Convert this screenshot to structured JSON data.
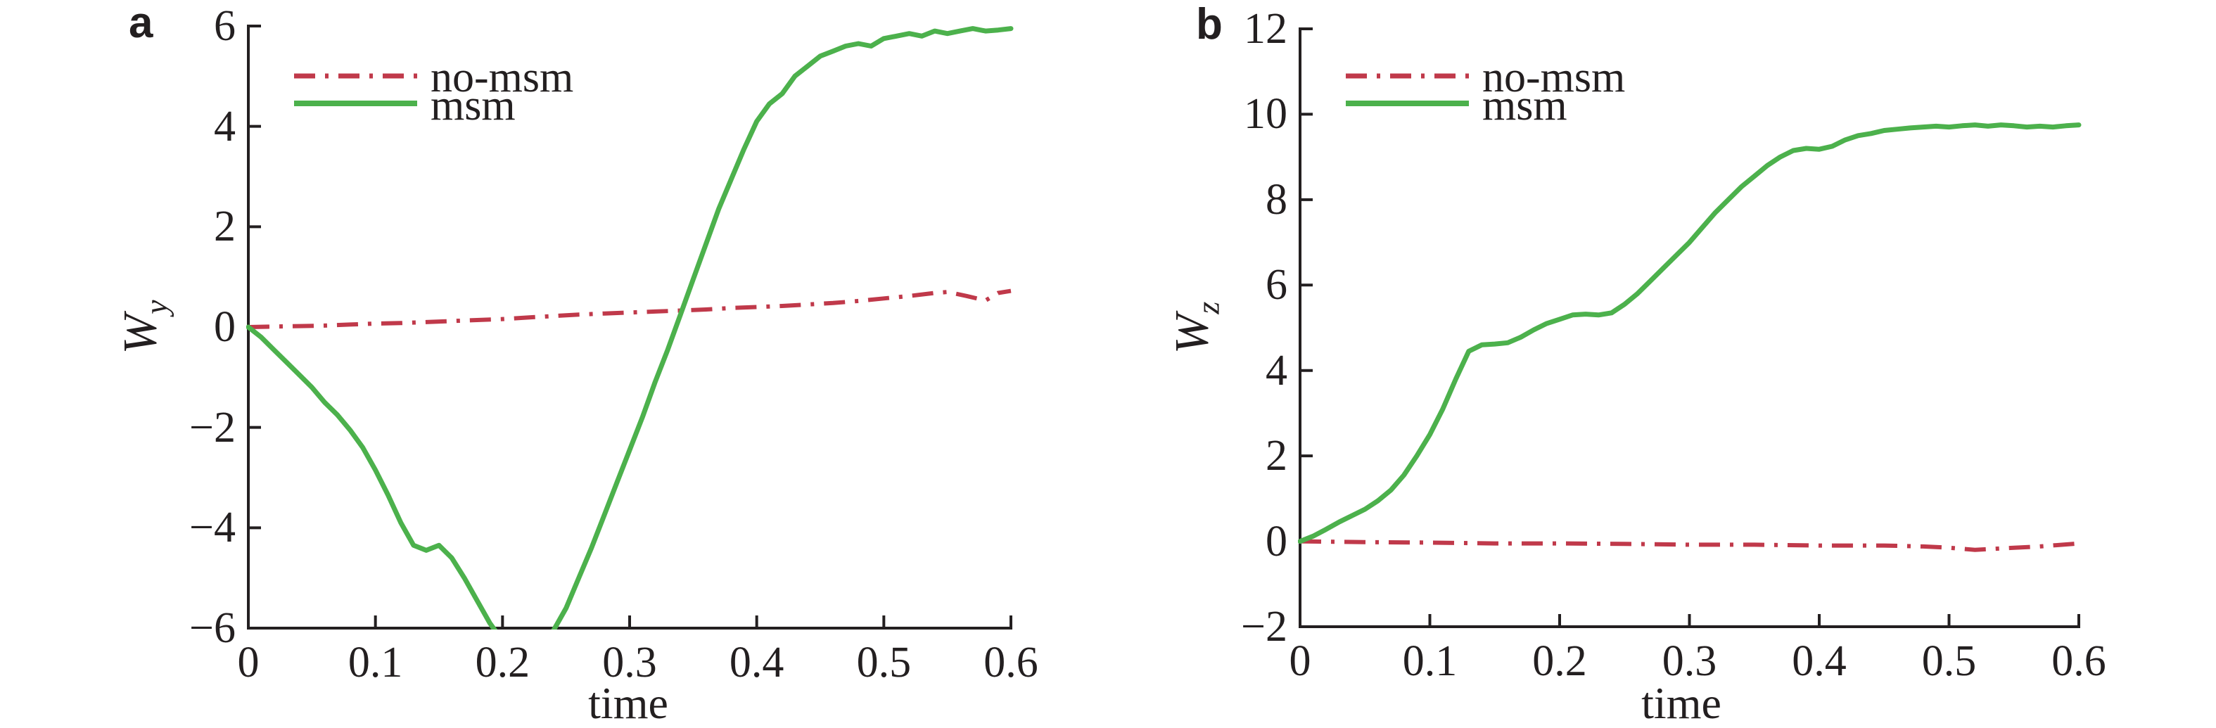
{
  "figure": {
    "background": "#ffffff",
    "text_color": "#231f20",
    "axis_color": "#231f20"
  },
  "chart_data": [
    {
      "id": "panel-a",
      "panel_label": "a",
      "type": "line",
      "xlabel": "time",
      "ylabel": "Wy",
      "ylabel_base": "W",
      "ylabel_sub": "y",
      "xlim": [
        0,
        0.6
      ],
      "ylim": [
        -6,
        6
      ],
      "xticks": [
        0,
        0.1,
        0.2,
        0.3,
        0.4,
        0.5,
        0.6
      ],
      "xtick_labels": [
        "0",
        "0.1",
        "0.2",
        "0.3",
        "0.4",
        "0.5",
        "0.6"
      ],
      "yticks": [
        -6,
        -4,
        -2,
        0,
        2,
        4,
        6
      ],
      "ytick_labels": [
        "−6",
        "−4",
        "−2",
        "0",
        "2",
        "4",
        "6"
      ],
      "grid": false,
      "legend_position": "top-left",
      "series": [
        {
          "name": "no-msm",
          "color": "#c0394a",
          "line_style": "dash-dot",
          "x": [
            0,
            0.02,
            0.04,
            0.06,
            0.08,
            0.1,
            0.12,
            0.14,
            0.16,
            0.18,
            0.2,
            0.22,
            0.24,
            0.26,
            0.28,
            0.3,
            0.32,
            0.34,
            0.36,
            0.38,
            0.4,
            0.42,
            0.44,
            0.46,
            0.48,
            0.5,
            0.52,
            0.54,
            0.55,
            0.565,
            0.58,
            0.59,
            0.6
          ],
          "y": [
            0.0,
            0.01,
            0.02,
            0.03,
            0.05,
            0.07,
            0.08,
            0.1,
            0.12,
            0.14,
            0.16,
            0.19,
            0.22,
            0.25,
            0.27,
            0.29,
            0.31,
            0.33,
            0.35,
            0.38,
            0.4,
            0.42,
            0.45,
            0.48,
            0.52,
            0.57,
            0.62,
            0.68,
            0.7,
            0.62,
            0.53,
            0.68,
            0.72
          ]
        },
        {
          "name": "msm",
          "color": "#4cb14c",
          "line_style": "solid",
          "x": [
            0,
            0.01,
            0.02,
            0.03,
            0.04,
            0.05,
            0.06,
            0.07,
            0.08,
            0.09,
            0.1,
            0.11,
            0.12,
            0.13,
            0.14,
            0.15,
            0.16,
            0.17,
            0.18,
            0.19,
            0.2,
            0.21,
            0.22,
            0.23,
            0.24,
            0.25,
            0.26,
            0.27,
            0.28,
            0.29,
            0.3,
            0.31,
            0.32,
            0.33,
            0.34,
            0.35,
            0.36,
            0.37,
            0.38,
            0.39,
            0.4,
            0.41,
            0.42,
            0.43,
            0.44,
            0.45,
            0.46,
            0.47,
            0.48,
            0.49,
            0.5,
            0.51,
            0.52,
            0.53,
            0.54,
            0.55,
            0.56,
            0.57,
            0.58,
            0.59,
            0.6
          ],
          "y": [
            0.0,
            -0.2,
            -0.45,
            -0.7,
            -0.95,
            -1.2,
            -1.5,
            -1.75,
            -2.05,
            -2.4,
            -2.85,
            -3.35,
            -3.9,
            -4.35,
            -4.45,
            -4.35,
            -4.6,
            -5.0,
            -5.45,
            -5.9,
            -6.25,
            -6.45,
            -6.5,
            -6.35,
            -6.05,
            -5.6,
            -5.0,
            -4.4,
            -3.75,
            -3.1,
            -2.45,
            -1.8,
            -1.1,
            -0.45,
            0.25,
            0.95,
            1.65,
            2.35,
            2.95,
            3.55,
            4.1,
            4.45,
            4.65,
            5.0,
            5.2,
            5.4,
            5.5,
            5.6,
            5.65,
            5.6,
            5.75,
            5.8,
            5.85,
            5.8,
            5.9,
            5.85,
            5.9,
            5.95,
            5.9,
            5.92,
            5.95
          ]
        }
      ]
    },
    {
      "id": "panel-b",
      "panel_label": "b",
      "type": "line",
      "xlabel": "time",
      "ylabel": "Wz",
      "ylabel_base": "W",
      "ylabel_sub": "z",
      "xlim": [
        0,
        0.6
      ],
      "ylim": [
        -2,
        12
      ],
      "xticks": [
        0,
        0.1,
        0.2,
        0.3,
        0.4,
        0.5,
        0.6
      ],
      "xtick_labels": [
        "0",
        "0.1",
        "0.2",
        "0.3",
        "0.4",
        "0.5",
        "0.6"
      ],
      "yticks": [
        -2,
        0,
        2,
        4,
        6,
        8,
        10,
        12
      ],
      "ytick_labels": [
        "−2",
        "0",
        "2",
        "4",
        "6",
        "8",
        "10",
        "12"
      ],
      "grid": false,
      "legend_position": "top-left",
      "series": [
        {
          "name": "no-msm",
          "color": "#c0394a",
          "line_style": "dash-dot",
          "x": [
            0,
            0.05,
            0.1,
            0.15,
            0.2,
            0.25,
            0.3,
            0.35,
            0.4,
            0.45,
            0.48,
            0.5,
            0.52,
            0.55,
            0.57,
            0.6
          ],
          "y": [
            0.0,
            -0.02,
            -0.03,
            -0.05,
            -0.05,
            -0.06,
            -0.08,
            -0.08,
            -0.1,
            -0.1,
            -0.12,
            -0.15,
            -0.2,
            -0.15,
            -0.12,
            -0.05
          ]
        },
        {
          "name": "msm",
          "color": "#4cb14c",
          "line_style": "solid",
          "x": [
            0,
            0.01,
            0.02,
            0.03,
            0.04,
            0.05,
            0.06,
            0.07,
            0.08,
            0.09,
            0.1,
            0.11,
            0.12,
            0.13,
            0.14,
            0.15,
            0.16,
            0.17,
            0.18,
            0.19,
            0.2,
            0.21,
            0.22,
            0.23,
            0.24,
            0.25,
            0.26,
            0.27,
            0.28,
            0.29,
            0.3,
            0.31,
            0.32,
            0.33,
            0.34,
            0.35,
            0.36,
            0.37,
            0.38,
            0.39,
            0.4,
            0.41,
            0.42,
            0.43,
            0.44,
            0.45,
            0.46,
            0.47,
            0.48,
            0.49,
            0.5,
            0.51,
            0.52,
            0.53,
            0.54,
            0.55,
            0.56,
            0.57,
            0.58,
            0.59,
            0.6
          ],
          "y": [
            0.0,
            0.12,
            0.28,
            0.45,
            0.6,
            0.75,
            0.95,
            1.2,
            1.55,
            2.0,
            2.5,
            3.1,
            3.8,
            4.45,
            4.6,
            4.62,
            4.65,
            4.78,
            4.95,
            5.1,
            5.2,
            5.3,
            5.32,
            5.3,
            5.35,
            5.55,
            5.8,
            6.1,
            6.4,
            6.7,
            7.0,
            7.35,
            7.7,
            8.0,
            8.3,
            8.55,
            8.8,
            9.0,
            9.15,
            9.2,
            9.18,
            9.25,
            9.4,
            9.5,
            9.55,
            9.62,
            9.65,
            9.68,
            9.7,
            9.72,
            9.7,
            9.73,
            9.75,
            9.72,
            9.75,
            9.73,
            9.7,
            9.72,
            9.7,
            9.73,
            9.75
          ]
        }
      ]
    }
  ]
}
